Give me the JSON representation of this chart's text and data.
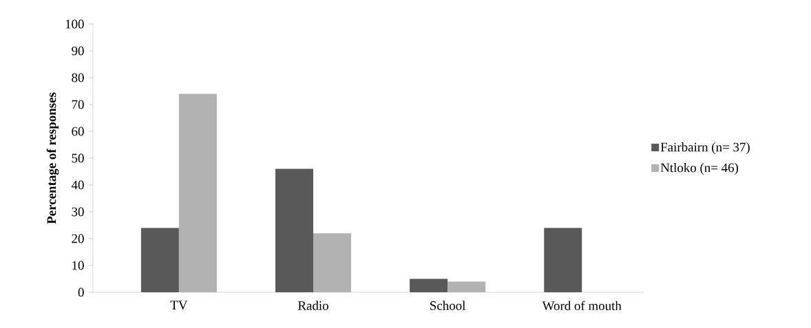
{
  "chart_data": {
    "type": "bar",
    "ylabel": "Percentage of responses",
    "categories": [
      "TV",
      "Radio",
      "School",
      "Word of mouth"
    ],
    "series": [
      {
        "name": "Fairbairn (n= 37)",
        "color": "#595959",
        "values": [
          24,
          46,
          5,
          24
        ]
      },
      {
        "name": "Ntloko (n= 46)",
        "color": "#b2b2b2",
        "values": [
          74,
          22,
          4,
          0
        ]
      }
    ],
    "ylim": [
      0,
      100
    ],
    "yticks": [
      0,
      10,
      20,
      30,
      40,
      50,
      60,
      70,
      80,
      90,
      100
    ],
    "grid": false,
    "legend": "right"
  }
}
